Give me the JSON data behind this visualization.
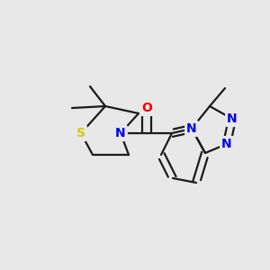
{
  "background_color": "#e8e8e8",
  "bond_color": "#1a1a1a",
  "atom_colors": {
    "N": "#0000ee",
    "O": "#ee0000",
    "S": "#cccc00",
    "C": "#1a1a1a"
  },
  "font_size_atom": 10,
  "lw": 1.6
}
